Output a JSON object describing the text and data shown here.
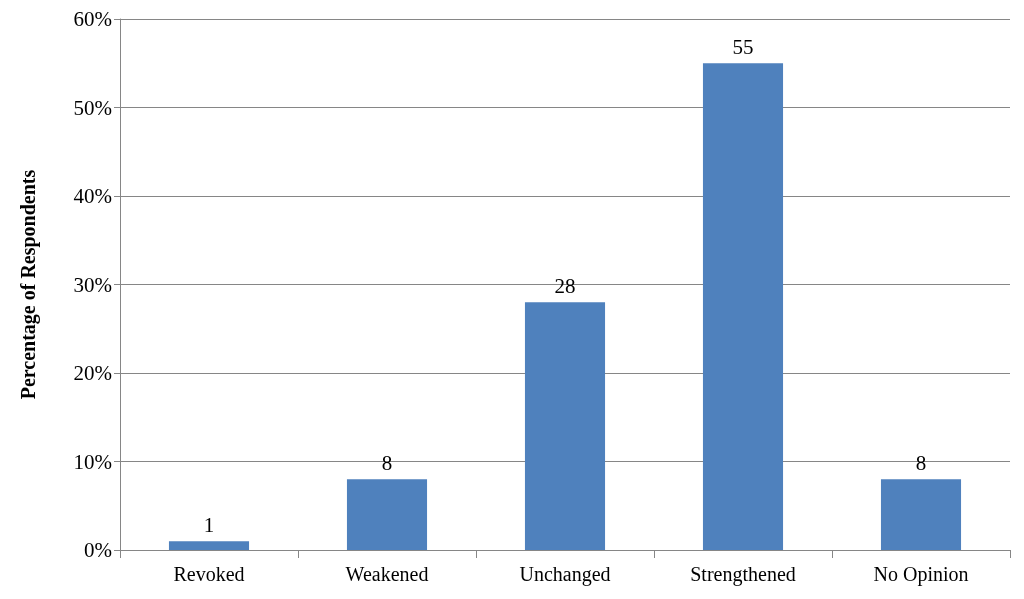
{
  "chart_data": {
    "type": "bar",
    "ylabel": "Percentage of Respondents",
    "categories": [
      "Revoked",
      "Weakened",
      "Unchanged",
      "Strengthened",
      "No Opinion"
    ],
    "values": [
      1,
      8,
      28,
      55,
      8
    ],
    "color": "#4f81bd",
    "data_labels": true,
    "ylim": [
      0,
      60
    ],
    "yticks": [
      {
        "value": 0,
        "label": "0%"
      },
      {
        "value": 10,
        "label": "10%"
      },
      {
        "value": 20,
        "label": "20%"
      },
      {
        "value": 30,
        "label": "30%"
      },
      {
        "value": 40,
        "label": "40%"
      },
      {
        "value": 50,
        "label": "50%"
      },
      {
        "value": 60,
        "label": "60%"
      }
    ],
    "grid": "y"
  }
}
